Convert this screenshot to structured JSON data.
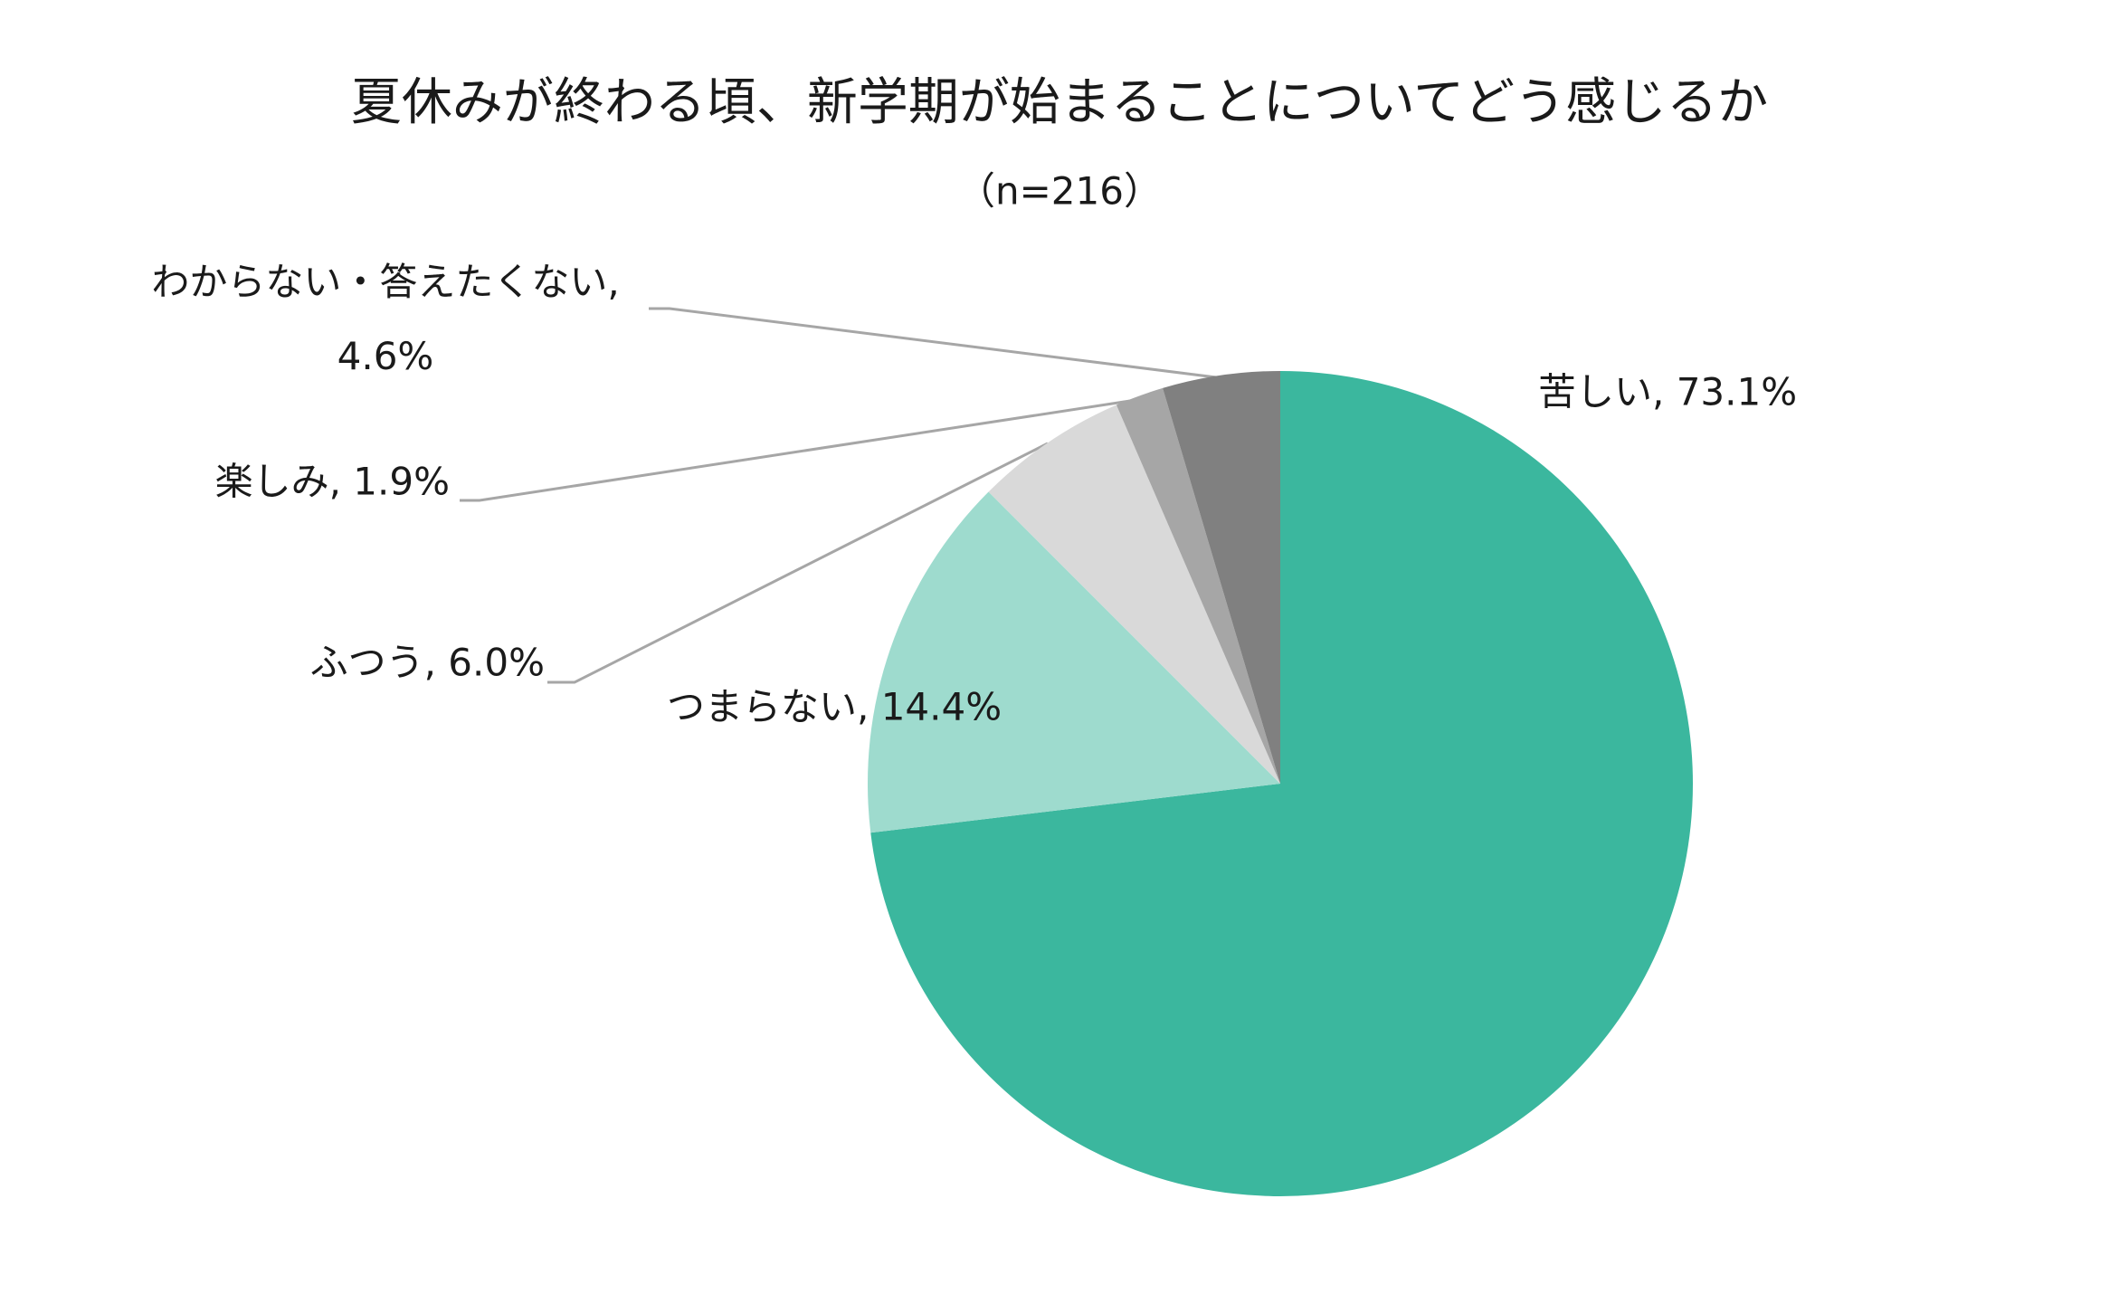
{
  "chart_data": {
    "type": "pie",
    "title": "夏休みが終わる頃、新学期が始まることについてどう感じるか",
    "subtitle": "（n=216）",
    "values": [
      73.1,
      14.4,
      6.0,
      1.9,
      4.6
    ],
    "value_labels": [
      "苦しい, 73.1%",
      "つまらない, 14.4%",
      "ふつう, 6.0%",
      "楽しみ, 1.9%",
      "わからない・答えたくない, 4.6%"
    ],
    "colors": [
      "#3bb79e",
      "#9edbce",
      "#d9d9d9",
      "#a6a6a6",
      "#808080"
    ]
  }
}
